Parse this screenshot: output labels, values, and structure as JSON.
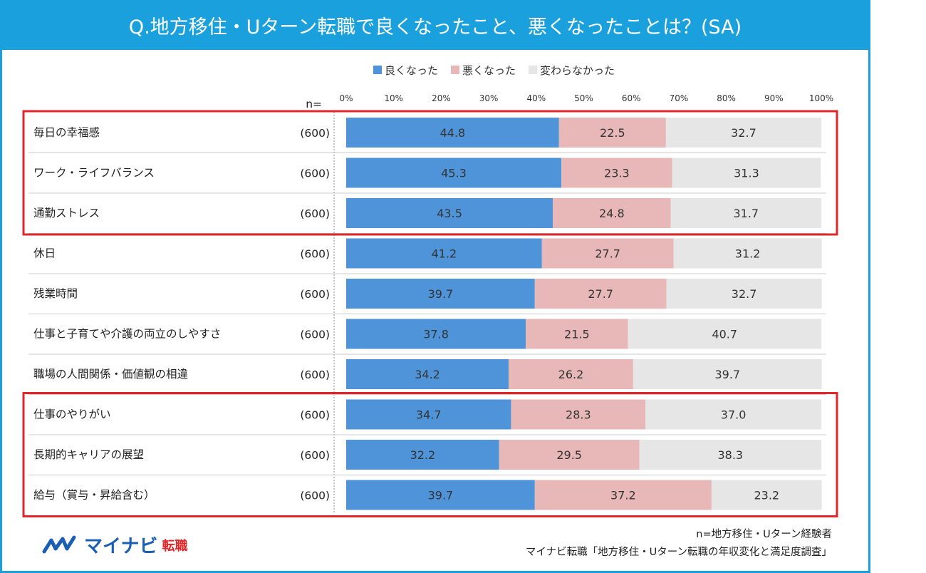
{
  "title": "Q.地方移住・Uターン転職で良くなったこと、悪くなったことは？(SA)",
  "n_header": "n=",
  "logo": {
    "main": "マイナビ",
    "sub": "転職"
  },
  "notes": {
    "line1": "n=地方移住・Uターン経験者",
    "line2": "マイナビ転職「地方移住・Uターン転職の年収変化と満足度調査」"
  },
  "colors": {
    "good": "#4f94d9",
    "bad": "#e8b8b8",
    "same": "#e6e6e6",
    "accent": "#1aa0dc",
    "highlight": "#e0262a"
  },
  "chart_data": {
    "type": "bar",
    "orientation": "horizontal-stacked-100",
    "xlim": [
      0,
      100
    ],
    "x_ticks": [
      "0%",
      "10%",
      "20%",
      "30%",
      "40%",
      "50%",
      "60%",
      "70%",
      "80%",
      "90%",
      "100%"
    ],
    "legend_position": "top",
    "series": [
      {
        "name": "良くなった",
        "color": "#4f94d9",
        "values": [
          44.8,
          45.3,
          43.5,
          41.2,
          39.7,
          37.8,
          34.2,
          34.7,
          32.2,
          39.7
        ]
      },
      {
        "name": "悪くなった",
        "color": "#e8b8b8",
        "values": [
          22.5,
          23.3,
          24.8,
          27.7,
          27.7,
          21.5,
          26.2,
          28.3,
          29.5,
          37.2
        ]
      },
      {
        "name": "変わらなかった",
        "color": "#e6e6e6",
        "values": [
          32.7,
          31.3,
          31.7,
          31.2,
          32.7,
          40.7,
          39.7,
          37.0,
          38.3,
          23.2
        ]
      }
    ],
    "value_labels": [
      [
        "44.8",
        "45.3",
        "43.5",
        "41.2",
        "39.7",
        "37.8",
        "34.2",
        "34.7",
        "32.2",
        "39.7"
      ],
      [
        "22.5",
        "23.3",
        "24.8",
        "27.7",
        "27.7",
        "21.5",
        "26.2",
        "28.3",
        "29.5",
        "37.2"
      ],
      [
        "32.7",
        "31.3",
        "31.7",
        "31.2",
        "32.7",
        "40.7",
        "39.7",
        "37.0",
        "38.3",
        "23.2"
      ]
    ],
    "categories": [
      "毎日の幸福感",
      "ワーク・ライフバランス",
      "通勤ストレス",
      "休日",
      "残業時間",
      "仕事と子育てや介護の両立のしやすさ",
      "職場の人間関係・価値観の相違",
      "仕事のやりがい",
      "長期的キャリアの展望",
      "給与（賞与・昇給含む）"
    ],
    "n_values": [
      "(600)",
      "(600)",
      "(600)",
      "(600)",
      "(600)",
      "(600)",
      "(600)",
      "(600)",
      "(600)",
      "(600)"
    ],
    "highlight_groups": [
      [
        0,
        2
      ],
      [
        7,
        9
      ]
    ]
  }
}
